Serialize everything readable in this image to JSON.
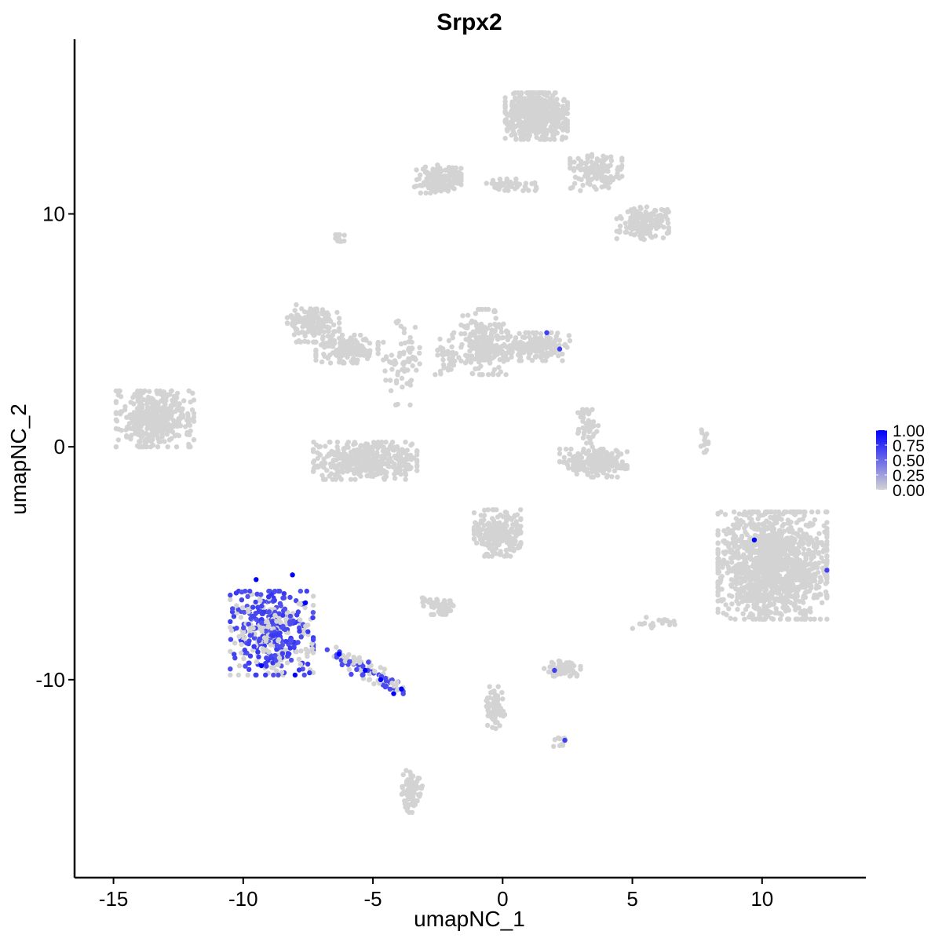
{
  "chart_data": {
    "type": "scatter",
    "title": "Srpx2",
    "xlabel": "umapNC_1",
    "ylabel": "umapNC_2",
    "xlim": [
      -16.5,
      14.0
    ],
    "ylim": [
      -18.5,
      17.5
    ],
    "x_ticks": [
      -15,
      -10,
      -5,
      0,
      5,
      10
    ],
    "x_tick_labels": [
      "-15",
      "-10",
      "-5",
      "0",
      "5",
      "10"
    ],
    "y_ticks": [
      -10,
      0,
      10
    ],
    "y_tick_labels": [
      "-10",
      "0",
      "10"
    ],
    "grid": false,
    "legend": {
      "placement": "right",
      "type": "colorbar",
      "labels": [
        "1.00",
        "0.75",
        "0.50",
        "0.25",
        "0.00"
      ],
      "values": [
        1.0,
        0.75,
        0.5,
        0.25,
        0.0
      ],
      "color_low": "#d3d3d3",
      "color_high": "#0000ff"
    },
    "clusters": [
      {
        "cx": -13.4,
        "cy": 1.2,
        "rx": 1.5,
        "ry": 1.2,
        "n": 420
      },
      {
        "cx": -7.3,
        "cy": 5.3,
        "rx": 1.0,
        "ry": 0.8,
        "n": 160
      },
      {
        "cx": -6.0,
        "cy": 4.2,
        "rx": 1.2,
        "ry": 0.6,
        "n": 140
      },
      {
        "cx": -5.3,
        "cy": -0.6,
        "rx": 2.0,
        "ry": 0.8,
        "n": 380
      },
      {
        "cx": -3.9,
        "cy": 3.6,
        "rx": 0.7,
        "ry": 1.8,
        "n": 70
      },
      {
        "cx": -0.7,
        "cy": 4.5,
        "rx": 0.9,
        "ry": 1.4,
        "n": 220
      },
      {
        "cx": 1.3,
        "cy": 4.3,
        "rx": 1.4,
        "ry": 0.6,
        "n": 160
      },
      {
        "cx": 1.3,
        "cy": 14.2,
        "rx": 1.2,
        "ry": 1.0,
        "n": 520
      },
      {
        "cx": -2.5,
        "cy": 11.5,
        "rx": 0.9,
        "ry": 0.6,
        "n": 150
      },
      {
        "cx": 0.3,
        "cy": 11.2,
        "rx": 1.0,
        "ry": 0.3,
        "n": 50
      },
      {
        "cx": 3.6,
        "cy": 11.8,
        "rx": 1.0,
        "ry": 0.8,
        "n": 140
      },
      {
        "cx": 5.4,
        "cy": 9.6,
        "rx": 1.0,
        "ry": 0.7,
        "n": 150
      },
      {
        "cx": 3.5,
        "cy": -0.7,
        "rx": 1.3,
        "ry": 0.6,
        "n": 200
      },
      {
        "cx": 3.3,
        "cy": 0.8,
        "rx": 0.4,
        "ry": 0.8,
        "n": 50
      },
      {
        "cx": -0.2,
        "cy": -3.7,
        "rx": 0.9,
        "ry": 1.0,
        "n": 230
      },
      {
        "cx": -2.5,
        "cy": -6.8,
        "rx": 0.6,
        "ry": 0.4,
        "n": 50
      },
      {
        "cx": 2.3,
        "cy": -9.5,
        "rx": 0.7,
        "ry": 0.35,
        "n": 70
      },
      {
        "cx": -0.3,
        "cy": -11.2,
        "rx": 0.4,
        "ry": 0.9,
        "n": 70
      },
      {
        "cx": -3.5,
        "cy": -14.8,
        "rx": 0.4,
        "ry": 0.9,
        "n": 80
      },
      {
        "cx": 10.4,
        "cy": -5.1,
        "rx": 2.1,
        "ry": 2.3,
        "n": 1300
      },
      {
        "cx": -6.3,
        "cy": 9.0,
        "rx": 0.2,
        "ry": 0.3,
        "n": 12
      },
      {
        "cx": -2.1,
        "cy": 4.0,
        "rx": 0.5,
        "ry": 0.9,
        "n": 40
      },
      {
        "cx": 7.8,
        "cy": 0.2,
        "rx": 0.2,
        "ry": 0.6,
        "n": 14
      },
      {
        "cx": 6.0,
        "cy": -7.5,
        "rx": 1.2,
        "ry": 0.3,
        "n": 20
      },
      {
        "cx": 2.2,
        "cy": -12.6,
        "rx": 0.3,
        "ry": 0.3,
        "n": 12
      }
    ],
    "expressing_region": {
      "cx": -8.9,
      "cy": -8.0,
      "rx": 1.6,
      "ry": 1.8,
      "n": 420
    },
    "expressing_tail": {
      "x0": -6.5,
      "y0": -8.8,
      "x1": -3.9,
      "y1": -10.5,
      "n": 90
    },
    "highlight_points": [
      {
        "x": 1.7,
        "y": 4.9,
        "value": 0.7
      },
      {
        "x": 2.2,
        "y": 4.2,
        "value": 0.7
      },
      {
        "x": 9.7,
        "y": -4.0,
        "value": 1.0
      },
      {
        "x": 12.5,
        "y": -5.3,
        "value": 0.7
      },
      {
        "x": 2.0,
        "y": -9.6,
        "value": 0.7
      },
      {
        "x": 2.4,
        "y": -12.6,
        "value": 0.7
      },
      {
        "x": -9.5,
        "y": -5.7,
        "value": 1.0
      },
      {
        "x": -8.1,
        "y": -5.5,
        "value": 1.0
      },
      {
        "x": -7.6,
        "y": -6.7,
        "value": 1.0
      },
      {
        "x": -9.3,
        "y": -9.4,
        "value": 1.0
      },
      {
        "x": -8.0,
        "y": -9.8,
        "value": 1.0
      },
      {
        "x": -6.3,
        "y": -8.9,
        "value": 1.0
      },
      {
        "x": -5.3,
        "y": -9.6,
        "value": 1.0
      },
      {
        "x": -4.7,
        "y": -10.0,
        "value": 1.0
      },
      {
        "x": -4.2,
        "y": -10.6,
        "value": 1.0
      },
      {
        "x": -3.9,
        "y": -10.4,
        "value": 1.0
      }
    ]
  }
}
